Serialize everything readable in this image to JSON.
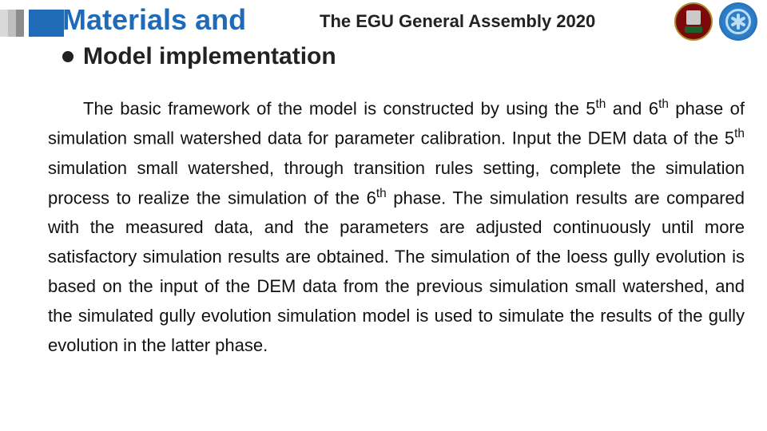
{
  "header": {
    "title": "Materials and",
    "conference": "The EGU General Assembly 2020",
    "accent_colors": [
      "#d9d9d9",
      "#bfbfbf",
      "#8c8c8c",
      "#1f6bb8"
    ],
    "title_color": "#1f6bb8",
    "title_fontsize": 36,
    "conf_fontsize": 22,
    "logos": [
      {
        "name": "nnu-crest",
        "primary": "#7c0a0a",
        "accent": "#1b5f2a"
      },
      {
        "name": "partner-blue",
        "primary": "#2f7ec9",
        "accent": "#bcdff5"
      }
    ]
  },
  "subtitle": {
    "marker": "disc",
    "text": "Model implementation",
    "fontsize": 30
  },
  "body": {
    "fontsize": 22,
    "line_height": 1.68,
    "text_color": "#111111",
    "indent_em": 2,
    "justify": true,
    "html": "The basic framework of the model is constructed by using the 5<sup>th</sup> and 6<sup>th</sup> phase of simulation small watershed data for parameter calibration. Input the DEM data of the 5<sup>th</sup> simulation small watershed, through transition rules setting, complete the simulation process to realize the simulation of the 6<sup>th</sup> phase. The simulation results are compared with the measured data, and the parameters are adjusted continuously until more satisfactory simulation results are obtained. The simulation of the loess gully evolution is based on the input of the DEM data from the previous simulation small watershed, and the simulated gully evolution simulation model is used to simulate the results of the gully evolution in the latter phase."
  }
}
